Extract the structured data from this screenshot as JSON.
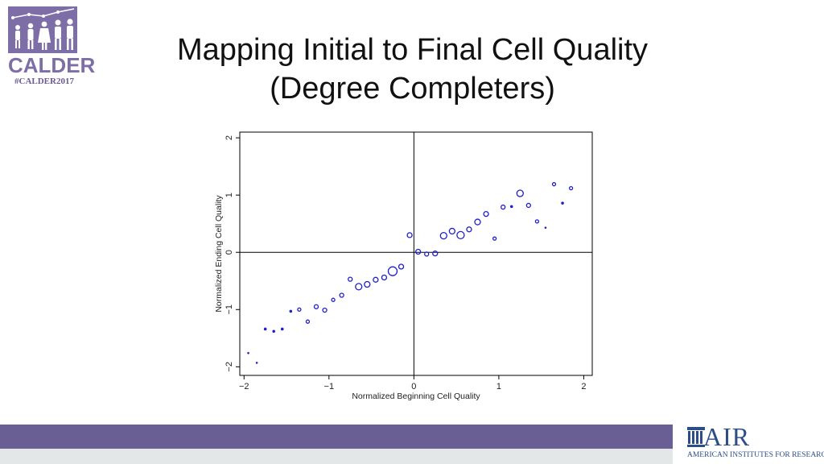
{
  "header": {
    "logo_word": "CALDER",
    "logo_tag": "#CALDER2017",
    "title_line1": "Mapping Initial to Final Cell Quality",
    "title_line2": "(Degree Completers)"
  },
  "footer": {
    "air_word": "AIR",
    "air_sub": "AMERICAN INSTITUTES FOR RESEARCH®"
  },
  "colors": {
    "points": "#1f1fcc",
    "band": "#6a5f95",
    "logo": "#7e6ea8"
  },
  "chart_data": {
    "type": "scatter",
    "xlabel": "Normalized Beginning Cell Quality",
    "ylabel": "Normalized Ending Cell Quality",
    "xlim": [
      -2.05,
      2.1
    ],
    "ylim": [
      -2.15,
      2.1
    ],
    "xticks": [
      -2,
      -1,
      0,
      1,
      2
    ],
    "xtick_labels": [
      "−2",
      "−1",
      "0",
      "1",
      "2"
    ],
    "yticks": [
      -2,
      -1,
      0,
      1,
      2
    ],
    "ytick_labels": [
      "−2",
      "−1",
      "0",
      "1",
      "2"
    ],
    "reference_lines": {
      "x": 0,
      "y": 0
    },
    "marker": "hollow circle, size proportional to weight",
    "points": [
      {
        "x": -1.95,
        "y": -1.76,
        "r": 1
      },
      {
        "x": -1.85,
        "y": -1.93,
        "r": 1
      },
      {
        "x": -1.75,
        "y": -1.34,
        "r": 1.5
      },
      {
        "x": -1.65,
        "y": -1.38,
        "r": 1.5
      },
      {
        "x": -1.55,
        "y": -1.34,
        "r": 1.5
      },
      {
        "x": -1.45,
        "y": -1.03,
        "r": 1.5
      },
      {
        "x": -1.35,
        "y": -1.0,
        "r": 2
      },
      {
        "x": -1.25,
        "y": -1.21,
        "r": 2
      },
      {
        "x": -1.15,
        "y": -0.95,
        "r": 2.5
      },
      {
        "x": -1.05,
        "y": -1.01,
        "r": 2.5
      },
      {
        "x": -0.95,
        "y": -0.83,
        "r": 2
      },
      {
        "x": -0.85,
        "y": -0.75,
        "r": 2.5
      },
      {
        "x": -0.75,
        "y": -0.47,
        "r": 2.5
      },
      {
        "x": -0.65,
        "y": -0.6,
        "r": 4
      },
      {
        "x": -0.55,
        "y": -0.56,
        "r": 3.5
      },
      {
        "x": -0.45,
        "y": -0.48,
        "r": 3
      },
      {
        "x": -0.35,
        "y": -0.44,
        "r": 3
      },
      {
        "x": -0.25,
        "y": -0.33,
        "r": 5.5
      },
      {
        "x": -0.15,
        "y": -0.25,
        "r": 3
      },
      {
        "x": -0.05,
        "y": 0.3,
        "r": 3
      },
      {
        "x": 0.05,
        "y": 0.01,
        "r": 3
      },
      {
        "x": 0.15,
        "y": -0.03,
        "r": 2.5
      },
      {
        "x": 0.25,
        "y": -0.02,
        "r": 3
      },
      {
        "x": 0.35,
        "y": 0.29,
        "r": 4
      },
      {
        "x": 0.45,
        "y": 0.37,
        "r": 3.5
      },
      {
        "x": 0.55,
        "y": 0.3,
        "r": 4.5
      },
      {
        "x": 0.65,
        "y": 0.4,
        "r": 3
      },
      {
        "x": 0.75,
        "y": 0.53,
        "r": 3.5
      },
      {
        "x": 0.85,
        "y": 0.67,
        "r": 3
      },
      {
        "x": 0.95,
        "y": 0.24,
        "r": 2
      },
      {
        "x": 1.05,
        "y": 0.79,
        "r": 2.5
      },
      {
        "x": 1.15,
        "y": 0.8,
        "r": 1.5
      },
      {
        "x": 1.25,
        "y": 1.03,
        "r": 4
      },
      {
        "x": 1.35,
        "y": 0.82,
        "r": 2.5
      },
      {
        "x": 1.45,
        "y": 0.54,
        "r": 2
      },
      {
        "x": 1.55,
        "y": 0.43,
        "r": 1
      },
      {
        "x": 1.65,
        "y": 1.19,
        "r": 2
      },
      {
        "x": 1.75,
        "y": 0.86,
        "r": 1.5
      },
      {
        "x": 1.85,
        "y": 1.12,
        "r": 2
      }
    ]
  }
}
